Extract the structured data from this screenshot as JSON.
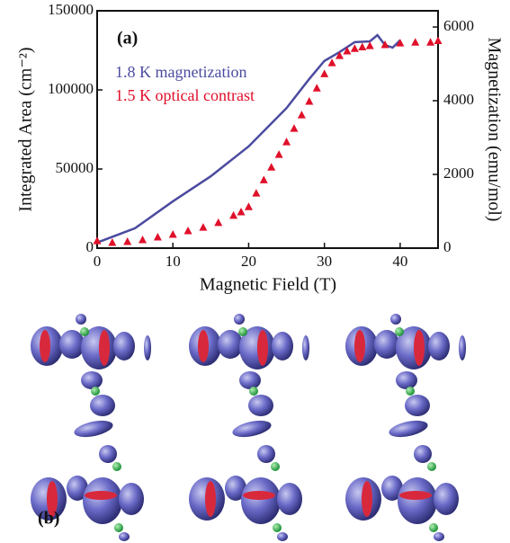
{
  "chart_data": {
    "type": "line",
    "panel_label": "(a)",
    "x_label": "Magnetic Field (T)",
    "y_label": "Integrated Area (cm⁻²)",
    "y2_label": "Magnetization (emu/mol)",
    "xlim": [
      0,
      45
    ],
    "xticks": [
      0,
      10,
      20,
      30,
      40
    ],
    "ylim": [
      0,
      150000
    ],
    "yticks": [
      0,
      50000,
      100000,
      150000
    ],
    "y2lim": [
      0,
      6440
    ],
    "y2ticks": [
      0,
      2000,
      4000,
      6000
    ],
    "series": [
      {
        "name": "1.8 K magnetization",
        "color": "#4b4ba0",
        "axis": "y2",
        "marker": "none",
        "x": [
          0,
          5,
          10,
          15,
          20,
          25,
          28,
          30,
          32,
          34,
          36,
          37,
          38,
          39,
          40
        ],
        "values": [
          150,
          540,
          1270,
          1950,
          2760,
          3800,
          4590,
          5080,
          5320,
          5590,
          5610,
          5780,
          5510,
          5440,
          5640
        ]
      },
      {
        "name": "1.5 K optical contrast",
        "color": "#e0102a",
        "axis": "y",
        "marker": "triangle",
        "x": [
          0,
          2,
          4,
          6,
          8,
          10,
          12,
          14,
          16,
          18,
          19,
          20,
          21,
          22,
          23,
          24,
          25,
          26,
          27,
          28,
          29,
          30,
          31,
          32,
          33,
          34,
          35,
          36,
          38,
          40,
          42,
          44,
          45
        ],
        "values": [
          4500,
          3400,
          4000,
          5100,
          6800,
          8500,
          10800,
          13000,
          16000,
          20500,
          22700,
          26000,
          34600,
          43000,
          51000,
          59000,
          67000,
          75500,
          84000,
          92600,
          101000,
          110000,
          117000,
          121500,
          124400,
          126000,
          127000,
          127800,
          128400,
          129500,
          130000,
          130000,
          131000
        ]
      }
    ]
  },
  "figure_b": {
    "panel_label": "(b)"
  }
}
